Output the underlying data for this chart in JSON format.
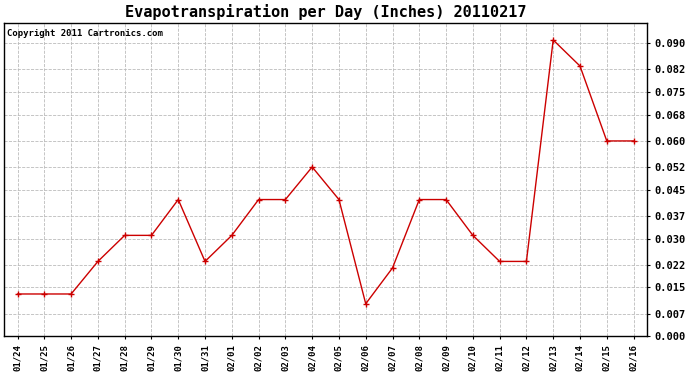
{
  "title": "Evapotranspiration per Day (Inches) 20110217",
  "copyright": "Copyright 2011 Cartronics.com",
  "labels": [
    "01/24",
    "01/25",
    "01/26",
    "01/27",
    "01/28",
    "01/29",
    "01/30",
    "01/31",
    "02/01",
    "02/02",
    "02/03",
    "02/04",
    "02/05",
    "02/06",
    "02/07",
    "02/08",
    "02/09",
    "02/10",
    "02/11",
    "02/12",
    "02/13",
    "02/14",
    "02/15",
    "02/16"
  ],
  "values": [
    0.013,
    0.013,
    0.013,
    0.023,
    0.031,
    0.031,
    0.042,
    0.023,
    0.031,
    0.042,
    0.042,
    0.052,
    0.042,
    0.01,
    0.021,
    0.042,
    0.042,
    0.031,
    0.023,
    0.023,
    0.091,
    0.083,
    0.06,
    0.06
  ],
  "line_color": "#cc0000",
  "marker": "+",
  "bg_color": "#ffffff",
  "grid_color": "#bbbbbb",
  "ylim": [
    0.0,
    0.0963
  ],
  "yticks": [
    0.0,
    0.007,
    0.015,
    0.022,
    0.03,
    0.037,
    0.045,
    0.052,
    0.06,
    0.068,
    0.075,
    0.082,
    0.09
  ],
  "title_fontsize": 11,
  "copyright_fontsize": 6.5
}
